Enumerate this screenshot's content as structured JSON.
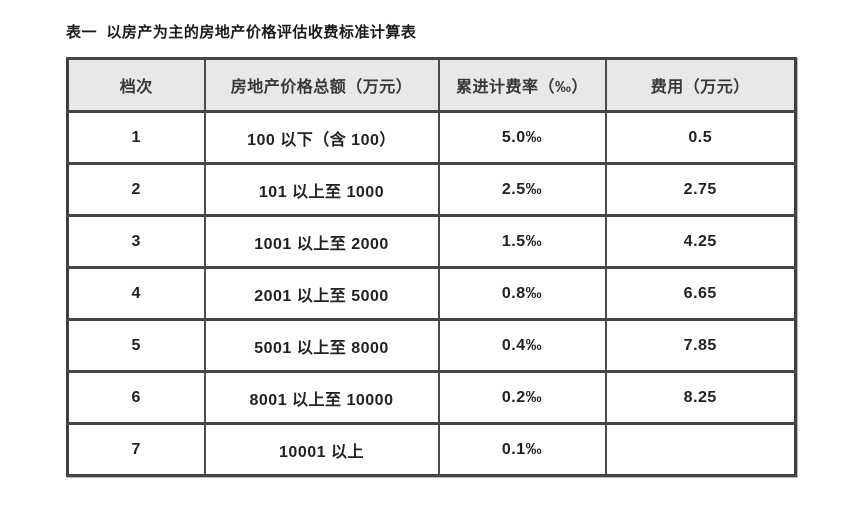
{
  "page": {
    "title": "表一  以房产为主的房地产价格评估收费标准计算表"
  },
  "table": {
    "headers": [
      "档次",
      "房地产价格总额（万元）",
      "累进计费率（‰）",
      "费用（万元）"
    ],
    "rows": [
      [
        "1",
        "100 以下（含 100）",
        "5.0‰",
        "0.5"
      ],
      [
        "2",
        "101 以上至 1000",
        "2.5‰",
        "2.75"
      ],
      [
        "3",
        "1001 以上至 2000",
        "1.5‰",
        "4.25"
      ],
      [
        "4",
        "2001 以上至 5000",
        "0.8‰",
        "6.65"
      ],
      [
        "5",
        "5001 以上至 8000",
        "0.4‰",
        "7.85"
      ],
      [
        "6",
        "8001 以上至 10000",
        "0.2‰",
        "8.25"
      ],
      [
        "7",
        "10001 以上",
        "0.1‰",
        ""
      ]
    ],
    "colors": {
      "header_bg": "#e8e8e8",
      "border": "#454545",
      "header_text": "#383838",
      "cell_text": "#222222"
    }
  }
}
